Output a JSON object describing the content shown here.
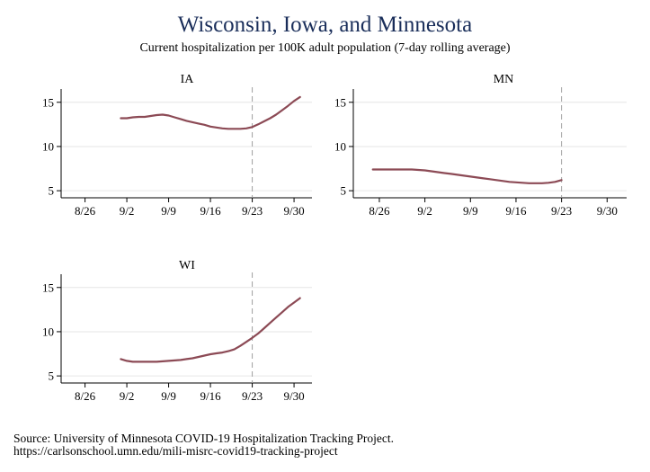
{
  "title": "Wisconsin, Iowa, and Minnesota",
  "subtitle": "Current hospitalization per 100K adult population (7-day rolling average)",
  "notes": [
    "Source: University of Minnesota COVID-19 Hospitalization Tracking Project.",
    "https://carlsonschool.umn.edu/mili-misrc-covid19-tracking-project"
  ],
  "colors": {
    "line": "#8c4a55",
    "title": "#1a2e5a"
  },
  "chart_data": [
    {
      "type": "line",
      "panel": "IA",
      "x_ticks": [
        "8/26",
        "9/2",
        "9/9",
        "9/16",
        "9/23",
        "9/30"
      ],
      "y_ticks": [
        5,
        10,
        15
      ],
      "ylim": [
        4.2,
        16.5
      ],
      "reference_line_x": "9/23",
      "grid": true,
      "x": [
        "9/1",
        "9/2",
        "9/3",
        "9/4",
        "9/5",
        "9/6",
        "9/7",
        "9/8",
        "9/9",
        "9/10",
        "9/11",
        "9/12",
        "9/13",
        "9/14",
        "9/15",
        "9/16",
        "9/17",
        "9/18",
        "9/19",
        "9/20",
        "9/21",
        "9/22",
        "9/23",
        "9/24",
        "9/25",
        "9/26",
        "9/27",
        "9/28",
        "9/29",
        "9/30",
        "10/1"
      ],
      "values": [
        13.2,
        13.2,
        13.3,
        13.35,
        13.35,
        13.45,
        13.55,
        13.6,
        13.5,
        13.3,
        13.1,
        12.9,
        12.75,
        12.6,
        12.45,
        12.25,
        12.15,
        12.05,
        12.0,
        12.0,
        12.0,
        12.05,
        12.2,
        12.5,
        12.85,
        13.2,
        13.6,
        14.1,
        14.6,
        15.15,
        15.6
      ]
    },
    {
      "type": "line",
      "panel": "MN",
      "x_ticks": [
        "8/26",
        "9/2",
        "9/9",
        "9/16",
        "9/23",
        "9/30"
      ],
      "y_ticks": [
        5,
        10,
        15
      ],
      "ylim": [
        4.2,
        16.5
      ],
      "reference_line_x": "9/23",
      "grid": true,
      "x": [
        "8/25",
        "8/26",
        "8/27",
        "8/28",
        "8/29",
        "8/30",
        "8/31",
        "9/1",
        "9/2",
        "9/3",
        "9/4",
        "9/5",
        "9/6",
        "9/7",
        "9/8",
        "9/9",
        "9/10",
        "9/11",
        "9/12",
        "9/13",
        "9/14",
        "9/15",
        "9/16",
        "9/17",
        "9/18",
        "9/19",
        "9/20",
        "9/21",
        "9/22",
        "9/23"
      ],
      "values": [
        7.4,
        7.4,
        7.4,
        7.4,
        7.4,
        7.4,
        7.4,
        7.35,
        7.3,
        7.2,
        7.1,
        7.0,
        6.9,
        6.8,
        6.7,
        6.6,
        6.5,
        6.4,
        6.3,
        6.2,
        6.1,
        6.0,
        5.95,
        5.9,
        5.85,
        5.85,
        5.85,
        5.9,
        6.0,
        6.2
      ]
    },
    {
      "type": "line",
      "panel": "WI",
      "x_ticks": [
        "8/26",
        "9/2",
        "9/9",
        "9/16",
        "9/23",
        "9/30"
      ],
      "y_ticks": [
        5,
        10,
        15
      ],
      "ylim": [
        4.2,
        16.5
      ],
      "reference_line_x": "9/23",
      "grid": true,
      "x": [
        "9/1",
        "9/2",
        "9/3",
        "9/4",
        "9/5",
        "9/6",
        "9/7",
        "9/8",
        "9/9",
        "9/10",
        "9/11",
        "9/12",
        "9/13",
        "9/14",
        "9/15",
        "9/16",
        "9/17",
        "9/18",
        "9/19",
        "9/20",
        "9/21",
        "9/22",
        "9/23",
        "9/24",
        "9/25",
        "9/26",
        "9/27",
        "9/28",
        "9/29",
        "9/30",
        "10/1"
      ],
      "values": [
        6.9,
        6.7,
        6.6,
        6.6,
        6.6,
        6.6,
        6.6,
        6.65,
        6.7,
        6.75,
        6.8,
        6.9,
        7.0,
        7.15,
        7.3,
        7.45,
        7.55,
        7.65,
        7.8,
        8.0,
        8.4,
        8.85,
        9.3,
        9.8,
        10.4,
        11.0,
        11.6,
        12.2,
        12.8,
        13.3,
        13.8
      ]
    }
  ]
}
